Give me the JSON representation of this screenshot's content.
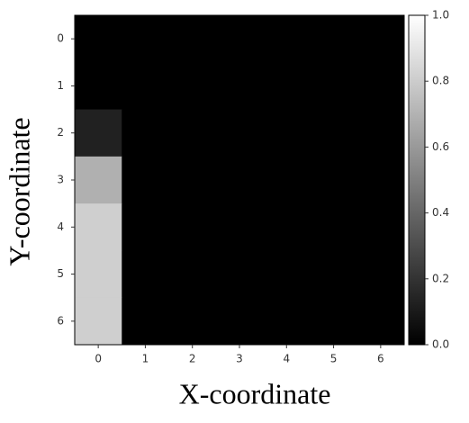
{
  "chart_data": {
    "type": "heatmap",
    "x_label": "X-coordinate",
    "y_label": "Y-coordinate",
    "colormap": "gray",
    "z": [
      [
        0,
        0,
        0,
        0,
        0,
        0,
        0
      ],
      [
        0,
        0,
        0,
        0,
        0,
        0,
        0
      ],
      [
        0.13,
        0,
        0,
        0,
        0,
        0,
        0
      ],
      [
        0.69,
        0,
        0,
        0,
        0,
        0,
        0
      ],
      [
        0.81,
        0,
        0,
        0,
        0,
        0,
        0
      ],
      [
        0.81,
        0,
        0,
        0,
        0,
        0,
        0
      ],
      [
        0.81,
        0,
        0,
        0,
        0,
        0,
        0
      ]
    ],
    "xlim": [
      -0.5,
      6.5
    ],
    "ylim": [
      6.5,
      -0.5
    ],
    "xticks": [
      0,
      1,
      2,
      3,
      4,
      5,
      6
    ],
    "yticks": [
      0,
      1,
      2,
      3,
      4,
      5,
      6
    ],
    "clim": [
      0,
      1
    ],
    "cticks": [
      {
        "value": 0,
        "label": "0.0"
      },
      0.2,
      0.4,
      0.6,
      0.8,
      {
        "value": 1,
        "label": "1.0"
      }
    ]
  }
}
